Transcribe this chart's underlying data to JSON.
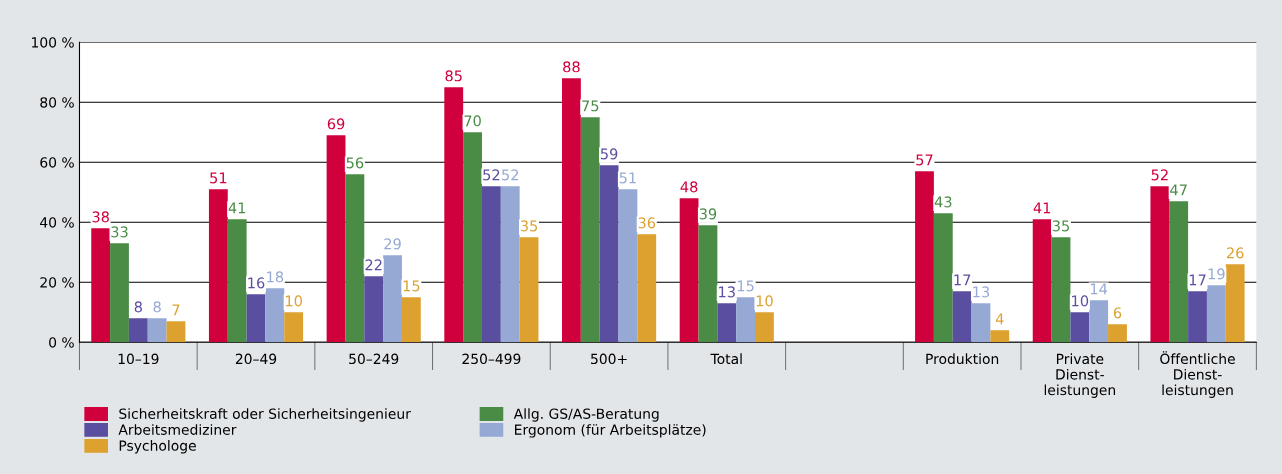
{
  "chart_data": {
    "type": "bar",
    "categories": [
      "10–19",
      "20–49",
      "50–249",
      "250–499",
      "500+",
      "Total",
      null,
      "Produktion",
      "Private\nDienst-\nleistungen",
      "Öffentliche\nDienst-\nleistungen"
    ],
    "series": [
      {
        "name": "Sicherheitskraft oder Sicherheitsingenieur",
        "color": "#d0003c",
        "values": [
          38,
          51,
          69,
          85,
          88,
          48,
          null,
          57,
          41,
          52
        ]
      },
      {
        "name": "Allg. GS/AS-Beratung",
        "color": "#4a8c45",
        "values": [
          33,
          41,
          56,
          70,
          75,
          39,
          null,
          43,
          35,
          47
        ]
      },
      {
        "name": "Arbeitsmediziner",
        "color": "#5a4ea0",
        "values": [
          8,
          16,
          22,
          52,
          59,
          13,
          null,
          17,
          10,
          17
        ]
      },
      {
        "name": "Ergonom (für Arbeitsplätze)",
        "color": "#96a9d4",
        "values": [
          8,
          18,
          29,
          52,
          51,
          15,
          null,
          13,
          14,
          19
        ]
      },
      {
        "name": "Psychologe",
        "color": "#dca12f",
        "values": [
          7,
          10,
          15,
          35,
          36,
          10,
          null,
          4,
          6,
          26
        ]
      }
    ],
    "ylim": [
      0,
      100
    ],
    "yticks": [
      {
        "value": 0,
        "label": "0 %"
      },
      {
        "value": 20,
        "label": "20 %"
      },
      {
        "value": 40,
        "label": "40 %"
      },
      {
        "value": 60,
        "label": "60 %"
      },
      {
        "value": 80,
        "label": "80 %"
      },
      {
        "value": 100,
        "label": "100 %"
      }
    ],
    "grid": "y",
    "legend": "bottom",
    "data_labels": true
  }
}
